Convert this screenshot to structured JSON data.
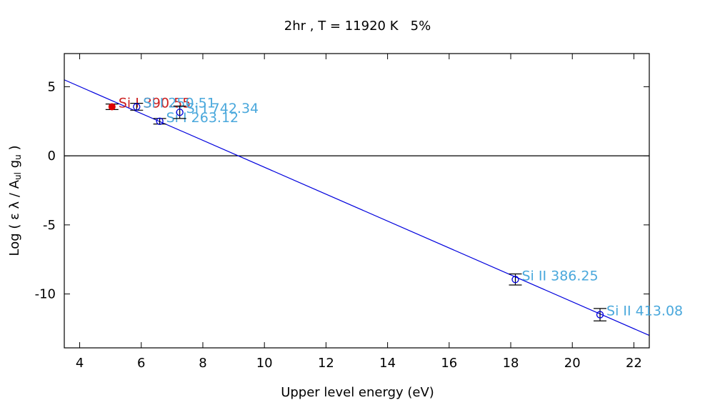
{
  "chart_data": {
    "type": "scatter",
    "title": "2hr , T = 11920 K   5%",
    "xlabel": "Upper level energy (eV)",
    "ylabel": {
      "prefix": "Log ( ε λ / A",
      "sub1": "ul",
      "mid": " g",
      "sub2": "u",
      "suffix": " )"
    },
    "xlim": [
      3.5,
      22.5
    ],
    "ylim": [
      -13.9,
      7.4
    ],
    "xticks": [
      4,
      6,
      8,
      10,
      12,
      14,
      16,
      18,
      20,
      22
    ],
    "yticks": [
      5,
      0,
      -5,
      -10
    ],
    "grid": false,
    "zero_line": true,
    "fit_line": {
      "x": [
        3.5,
        22.5
      ],
      "y": [
        5.5,
        -13.0
      ],
      "color": "#0000dd"
    },
    "series": [
      {
        "marker": "filled-circle",
        "color": "#dd0000",
        "label_color": "#cc2222",
        "points": [
          {
            "x": 5.05,
            "y": 3.55,
            "yerr": 0.2,
            "label": "Si I 390.55"
          }
        ]
      },
      {
        "marker": "open-circle",
        "color": "#0000dd",
        "label_color": "#4aa8dc",
        "points": [
          {
            "x": 5.85,
            "y": 3.55,
            "yerr": 0.25,
            "label": "Si I 250.51"
          },
          {
            "x": 6.6,
            "y": 2.5,
            "yerr": 0.2,
            "label": "Si I 263.12"
          },
          {
            "x": 7.25,
            "y": 3.15,
            "yerr": 0.45,
            "label": "Si I 742.34"
          },
          {
            "x": 18.15,
            "y": -8.95,
            "yerr": 0.4,
            "label": "Si II 386.25"
          },
          {
            "x": 20.9,
            "y": -11.5,
            "yerr": 0.45,
            "label": "Si II 413.08"
          }
        ]
      }
    ]
  }
}
